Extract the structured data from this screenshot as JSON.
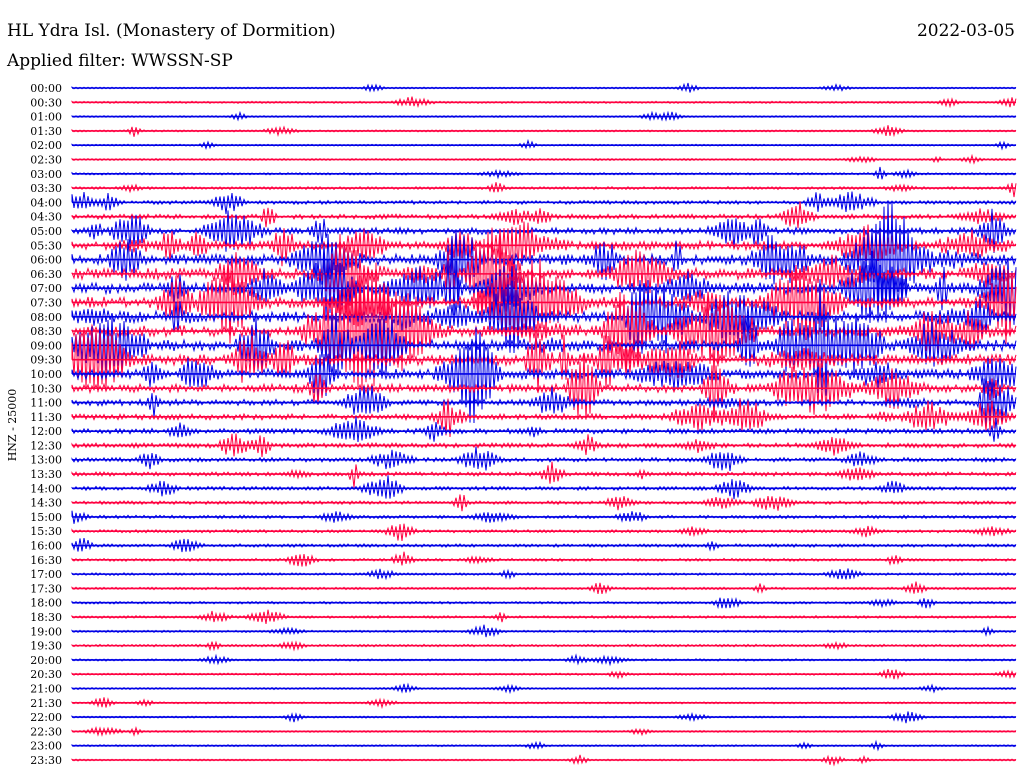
{
  "header": {
    "title": "HL Ydra Isl. (Monastery of Dormition)",
    "date": "2022-03-05",
    "filter": "Applied filter: WWSSN-SP"
  },
  "chart_data": {
    "type": "line",
    "title": "HL Ydra Isl. (Monastery of Dormition)",
    "subtitle": "Applied filter: WWSSN-SP",
    "date": "2022-03-05",
    "ylabel": "HNZ - 25000",
    "ytick_labels": [
      "00:00",
      "00:30",
      "01:00",
      "01:30",
      "02:00",
      "02:30",
      "03:00",
      "03:30",
      "04:00",
      "04:30",
      "05:00",
      "05:30",
      "06:00",
      "06:30",
      "07:00",
      "07:30",
      "08:00",
      "08:30",
      "09:00",
      "09:30",
      "10:00",
      "10:30",
      "11:00",
      "11:30",
      "12:00",
      "12:30",
      "13:00",
      "13:30",
      "14:00",
      "14:30",
      "15:00",
      "15:30",
      "16:00",
      "16:30",
      "17:00",
      "17:30",
      "18:00",
      "18:30",
      "19:00",
      "19:30",
      "20:00",
      "20:30",
      "21:00",
      "21:30",
      "22:00",
      "22:30",
      "23:00",
      "23:30"
    ],
    "trace_colors": [
      "#0000e6",
      "#ff0040"
    ],
    "trace_activity": [
      0.05,
      0.08,
      0.05,
      0.07,
      0.05,
      0.07,
      0.1,
      0.15,
      0.25,
      0.35,
      0.55,
      0.75,
      0.95,
      1.0,
      1.0,
      1.0,
      1.0,
      1.0,
      1.0,
      1.0,
      0.9,
      0.7,
      0.5,
      0.45,
      0.4,
      0.35,
      0.3,
      0.28,
      0.25,
      0.22,
      0.2,
      0.18,
      0.2,
      0.15,
      0.12,
      0.12,
      0.12,
      0.14,
      0.1,
      0.12,
      0.1,
      0.08,
      0.07,
      0.07,
      0.07,
      0.06,
      0.06,
      0.06
    ],
    "grid": false,
    "legend": "none"
  }
}
